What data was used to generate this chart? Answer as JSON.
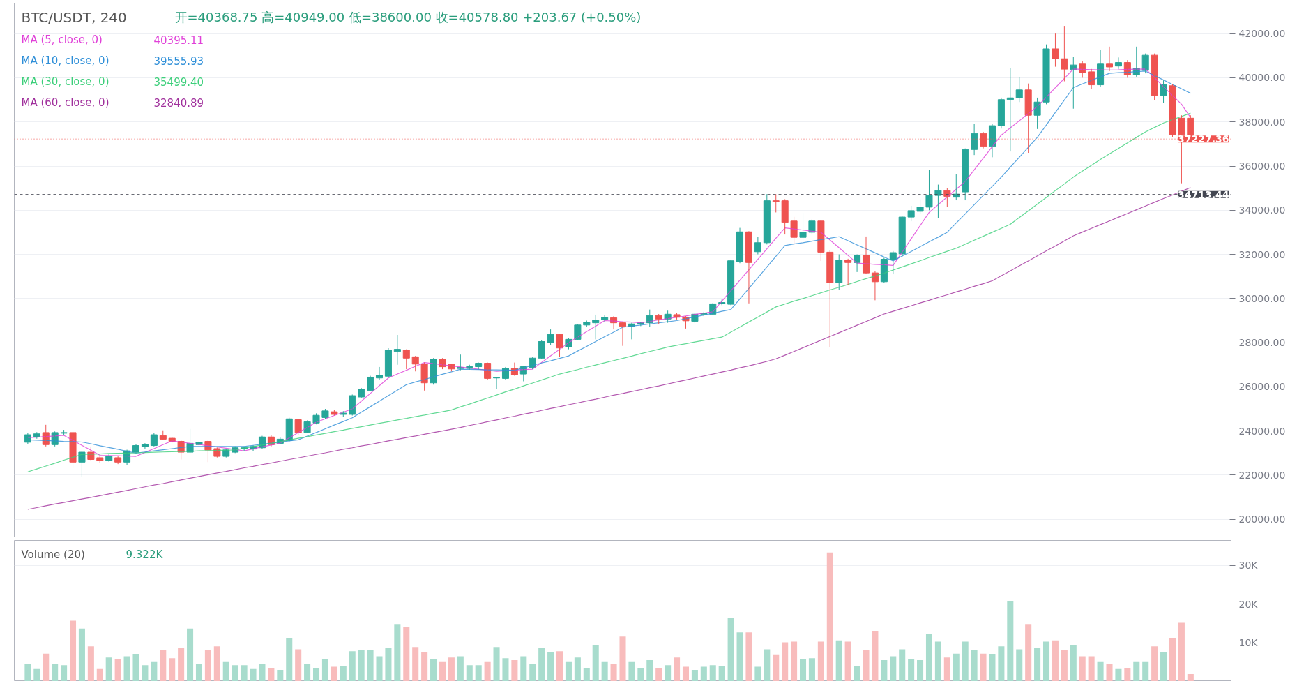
{
  "chart_data": [
    {
      "type": "candlestick",
      "title": "BTC/USDT, 240",
      "subtitle": "开=40368.75  高=40949.00  低=38600.00  收=40578.80  +203.67 (+0.50%)",
      "legend": "top left",
      "tick_labels": "y",
      "grid": "y",
      "ylim": [
        19170,
        43380
      ],
      "yticks": [
        {
          "value": 20000,
          "label": "20000.00"
        },
        {
          "value": 22000,
          "label": "22000.00"
        },
        {
          "value": 24000,
          "label": "24000.00"
        },
        {
          "value": 26000,
          "label": "26000.00"
        },
        {
          "value": 28000,
          "label": "28000.00"
        },
        {
          "value": 30000,
          "label": "30000.00"
        },
        {
          "value": 32000,
          "label": "32000.00"
        },
        {
          "value": 34000,
          "label": "34000.00"
        },
        {
          "value": 36000,
          "label": "36000.00"
        },
        {
          "value": 38000,
          "label": "38000.00"
        },
        {
          "value": 40000,
          "label": "40000.00"
        },
        {
          "value": 42000,
          "label": "42000.00"
        }
      ],
      "categories": [
        null,
        null,
        null,
        null,
        null,
        null,
        null,
        null,
        null,
        null,
        null,
        null,
        null,
        null,
        null,
        null,
        null,
        null,
        null,
        null,
        null,
        null,
        null,
        null,
        null,
        null,
        null,
        null,
        null,
        null,
        null,
        null,
        null,
        null,
        null,
        null,
        null,
        null,
        null,
        null,
        null,
        null,
        null,
        null,
        null,
        null,
        null,
        null,
        null,
        null,
        null,
        null,
        null,
        null,
        null,
        null,
        null,
        null,
        null,
        null,
        null,
        null,
        null,
        null,
        null,
        null,
        null,
        null,
        null,
        null,
        null,
        null,
        null,
        null,
        null,
        null,
        null,
        null,
        null,
        null,
        null,
        null,
        null,
        null,
        null,
        null,
        null,
        null,
        null,
        null,
        null,
        null,
        null,
        null,
        null,
        null,
        null,
        null,
        null,
        null,
        null,
        null,
        null,
        null,
        null,
        null,
        null,
        null,
        null,
        null,
        null,
        null,
        null,
        null,
        null,
        null,
        null,
        null,
        null,
        null,
        null,
        null,
        null,
        null,
        null,
        null,
        null,
        null,
        null,
        null
      ],
      "ohlc": [
        [
          23490,
          23900,
          23400,
          23830
        ],
        [
          23730,
          23950,
          23650,
          23870
        ],
        [
          23930,
          24280,
          23300,
          23380
        ],
        [
          23380,
          23980,
          23300,
          23930
        ],
        [
          23900,
          24050,
          23800,
          23930
        ],
        [
          23930,
          24000,
          22310,
          22590
        ],
        [
          22590,
          23100,
          21920,
          23040
        ],
        [
          23040,
          23300,
          22650,
          22710
        ],
        [
          22790,
          22850,
          22550,
          22650
        ],
        [
          22650,
          22950,
          22600,
          22850
        ],
        [
          22790,
          22850,
          22500,
          22590
        ],
        [
          22590,
          23150,
          22450,
          23100
        ],
        [
          23040,
          23400,
          23000,
          23340
        ],
        [
          23280,
          23450,
          23200,
          23400
        ],
        [
          23340,
          23900,
          23300,
          23830
        ],
        [
          23790,
          24030,
          23580,
          23630
        ],
        [
          23670,
          23720,
          23480,
          23530
        ],
        [
          23530,
          23600,
          22710,
          23040
        ],
        [
          23040,
          24090,
          23000,
          23440
        ],
        [
          23380,
          23550,
          23300,
          23490
        ],
        [
          23530,
          23600,
          22590,
          23140
        ],
        [
          23200,
          23250,
          22800,
          22850
        ],
        [
          22850,
          23200,
          22800,
          23140
        ],
        [
          23040,
          23300,
          23000,
          23240
        ],
        [
          23200,
          23300,
          23100,
          23240
        ],
        [
          23180,
          23350,
          23100,
          23300
        ],
        [
          23240,
          23780,
          23200,
          23730
        ],
        [
          23730,
          23800,
          23300,
          23380
        ],
        [
          23440,
          23700,
          23400,
          23630
        ],
        [
          23570,
          24600,
          23500,
          24550
        ],
        [
          24510,
          24550,
          23800,
          23930
        ],
        [
          23930,
          24480,
          23900,
          24420
        ],
        [
          24360,
          24800,
          24300,
          24710
        ],
        [
          24610,
          25000,
          24550,
          24910
        ],
        [
          24870,
          24950,
          24700,
          24750
        ],
        [
          24750,
          24900,
          24650,
          24810
        ],
        [
          24750,
          25650,
          24700,
          25600
        ],
        [
          25540,
          25950,
          25500,
          25890
        ],
        [
          25830,
          26500,
          25800,
          26440
        ],
        [
          26400,
          26900,
          26300,
          26520
        ],
        [
          26480,
          27750,
          26450,
          27660
        ],
        [
          27600,
          28350,
          27000,
          27700
        ],
        [
          27660,
          27700,
          26800,
          27300
        ],
        [
          27360,
          27400,
          26700,
          27030
        ],
        [
          27030,
          27100,
          25830,
          26180
        ],
        [
          26180,
          27300,
          26100,
          27260
        ],
        [
          27230,
          27300,
          26800,
          26910
        ],
        [
          27010,
          27050,
          26700,
          26810
        ],
        [
          26830,
          27460,
          26750,
          26880
        ],
        [
          26833,
          27000,
          26780,
          26912
        ],
        [
          26912,
          27100,
          26800,
          27070
        ],
        [
          27070,
          27100,
          26300,
          26380
        ],
        [
          26400,
          26450,
          25890,
          26420
        ],
        [
          26380,
          26900,
          26300,
          26833
        ],
        [
          26833,
          27100,
          26500,
          26550
        ],
        [
          26580,
          26950,
          26250,
          26912
        ],
        [
          26870,
          27350,
          26800,
          27300
        ],
        [
          27300,
          28100,
          27250,
          28050
        ],
        [
          28000,
          28600,
          27900,
          28370
        ],
        [
          28370,
          28400,
          27360,
          27760
        ],
        [
          27800,
          28200,
          27700,
          28150
        ],
        [
          28150,
          28850,
          28100,
          28800
        ],
        [
          28800,
          29000,
          28700,
          28935
        ],
        [
          28900,
          29270,
          28150,
          29030
        ],
        [
          29030,
          29250,
          28950,
          29150
        ],
        [
          29130,
          29200,
          28600,
          28900
        ],
        [
          28900,
          28950,
          27855,
          28740
        ],
        [
          28740,
          28900,
          28150,
          28850
        ],
        [
          28850,
          28950,
          28750,
          28900
        ],
        [
          28900,
          29500,
          28700,
          29230
        ],
        [
          29230,
          29300,
          28850,
          29070
        ],
        [
          29070,
          29450,
          28900,
          29290
        ],
        [
          29270,
          29350,
          29050,
          29150
        ],
        [
          29150,
          29200,
          28640,
          28990
        ],
        [
          28970,
          29350,
          28900,
          29290
        ],
        [
          29290,
          29400,
          29200,
          29330
        ],
        [
          29290,
          29800,
          29250,
          29760
        ],
        [
          29760,
          29950,
          29700,
          29820
        ],
        [
          29740,
          31750,
          29700,
          31710
        ],
        [
          31670,
          33200,
          31600,
          33020
        ],
        [
          33020,
          33050,
          29780,
          31630
        ],
        [
          32120,
          32800,
          32000,
          32530
        ],
        [
          32530,
          34730,
          32450,
          34430
        ],
        [
          34430,
          34730,
          33900,
          34400
        ],
        [
          34430,
          34500,
          32900,
          33450
        ],
        [
          33510,
          33700,
          32500,
          32770
        ],
        [
          32770,
          33880,
          32600,
          33000
        ],
        [
          33000,
          33600,
          32900,
          33510
        ],
        [
          33510,
          33550,
          31700,
          32100
        ],
        [
          32100,
          32200,
          27800,
          30720
        ],
        [
          30720,
          32000,
          30400,
          31740
        ],
        [
          31740,
          31800,
          30600,
          31630
        ],
        [
          31630,
          32000,
          31200,
          31970
        ],
        [
          31970,
          32810,
          31100,
          31160
        ],
        [
          31160,
          31250,
          29920,
          30760
        ],
        [
          30760,
          31850,
          30700,
          31780
        ],
        [
          31780,
          32150,
          31100,
          32080
        ],
        [
          32020,
          33750,
          31900,
          33690
        ],
        [
          33690,
          34200,
          33500,
          33980
        ],
        [
          33950,
          34500,
          33850,
          34140
        ],
        [
          34140,
          35810,
          34000,
          34670
        ],
        [
          34670,
          35160,
          33650,
          34890
        ],
        [
          34890,
          35000,
          34140,
          34630
        ],
        [
          34590,
          35620,
          34450,
          34730
        ],
        [
          34830,
          36800,
          34450,
          36750
        ],
        [
          36750,
          37900,
          36500,
          37480
        ],
        [
          37480,
          37550,
          36800,
          36890
        ],
        [
          36890,
          37900,
          36400,
          37830
        ],
        [
          37830,
          39100,
          37700,
          39010
        ],
        [
          39010,
          40430,
          36660,
          39090
        ],
        [
          39090,
          40040,
          38900,
          39450
        ],
        [
          39450,
          39740,
          36600,
          38300
        ],
        [
          38300,
          39100,
          37680,
          38900
        ],
        [
          38900,
          41510,
          38800,
          41310
        ],
        [
          41310,
          42000,
          40500,
          40860
        ],
        [
          40860,
          42350,
          39840,
          40390
        ],
        [
          40368.75,
          40949,
          38600,
          40578.8
        ],
        [
          40620,
          40750,
          40000,
          40230
        ],
        [
          40270,
          40400,
          39500,
          39680
        ],
        [
          39680,
          41250,
          39600,
          40620
        ],
        [
          40620,
          41410,
          40300,
          40490
        ],
        [
          40530,
          40920,
          40400,
          40690
        ],
        [
          40690,
          40800,
          40000,
          40130
        ],
        [
          40130,
          41410,
          40050,
          40430
        ],
        [
          40330,
          41100,
          40200,
          41020
        ],
        [
          41020,
          41100,
          39000,
          39210
        ],
        [
          39210,
          39880,
          38860,
          39680
        ],
        [
          39640,
          39700,
          37300,
          37440
        ],
        [
          38170,
          38300,
          35220,
          37440
        ],
        [
          38170,
          38300,
          37100,
          37227.36
        ]
      ],
      "colors": [
        "#26a69a",
        "#26a69a",
        "#ef5350",
        "#26a69a",
        "#26a69a",
        "#ef5350",
        "#26a69a",
        "#ef5350",
        "#ef5350",
        "#26a69a",
        "#ef5350",
        "#26a69a",
        "#26a69a",
        "#26a69a",
        "#26a69a",
        "#ef5350",
        "#ef5350",
        "#ef5350",
        "#26a69a",
        "#26a69a",
        "#ef5350",
        "#ef5350",
        "#26a69a",
        "#26a69a",
        "#26a69a",
        "#26a69a",
        "#26a69a",
        "#ef5350",
        "#26a69a",
        "#26a69a",
        "#ef5350",
        "#26a69a",
        "#26a69a",
        "#26a69a",
        "#ef5350",
        "#26a69a",
        "#26a69a",
        "#26a69a",
        "#26a69a",
        "#26a69a",
        "#26a69a",
        "#26a69a",
        "#ef5350",
        "#ef5350",
        "#ef5350",
        "#26a69a",
        "#ef5350",
        "#ef5350",
        "#26a69a",
        "#26a69a",
        "#26a69a",
        "#ef5350",
        "#26a69a",
        "#26a69a",
        "#ef5350",
        "#26a69a",
        "#26a69a",
        "#26a69a",
        "#26a69a",
        "#ef5350",
        "#26a69a",
        "#26a69a",
        "#26a69a",
        "#26a69a",
        "#26a69a",
        "#ef5350",
        "#ef5350",
        "#26a69a",
        "#26a69a",
        "#26a69a",
        "#ef5350",
        "#26a69a",
        "#ef5350",
        "#ef5350",
        "#26a69a",
        "#26a69a",
        "#26a69a",
        "#26a69a",
        "#26a69a",
        "#26a69a",
        "#ef5350",
        "#26a69a",
        "#26a69a",
        "#ef5350",
        "#ef5350",
        "#ef5350",
        "#26a69a",
        "#26a69a",
        "#ef5350",
        "#ef5350",
        "#26a69a",
        "#ef5350",
        "#26a69a",
        "#ef5350",
        "#ef5350",
        "#26a69a",
        "#26a69a",
        "#26a69a",
        "#26a69a",
        "#26a69a",
        "#26a69a",
        "#26a69a",
        "#ef5350",
        "#26a69a",
        "#26a69a",
        "#26a69a",
        "#ef5350",
        "#26a69a",
        "#26a69a",
        "#26a69a",
        "#26a69a",
        "#ef5350",
        "#26a69a",
        "#26a69a",
        "#ef5350",
        "#ef5350",
        "#26a69a",
        "#ef5350",
        "#ef5350",
        "#26a69a",
        "#ef5350",
        "#26a69a",
        "#ef5350",
        "#26a69a",
        "#26a69a",
        "#ef5350",
        "#26a69a",
        "#ef5350",
        "#ef5350",
        "#ef5350"
      ],
      "series": [
        {
          "type": "line",
          "name": "MA (5, close, 0)",
          "color": "#e040d8",
          "values": [
            23700,
            23720,
            23750,
            23770,
            23800,
            23580,
            23350,
            23130,
            22900,
            22890,
            22880,
            22860,
            22850,
            23030,
            23200,
            23380,
            23550,
            23500,
            23440,
            23390,
            23330,
            23270,
            23220,
            23160,
            23100,
            23190,
            23280,
            23360,
            23450,
            23690,
            23930,
            24160,
            24400,
            24550,
            24700,
            24850,
            25000,
            25350,
            25700,
            26050,
            26400,
            26580,
            26750,
            26930,
            27100,
            27050,
            27000,
            26950,
            26900,
            26850,
            26800,
            26750,
            26700,
            26730,
            26750,
            26780,
            26800,
            27100,
            27400,
            27700,
            28000,
            28250,
            28500,
            28750,
            29000,
            28980,
            28950,
            28930,
            28900,
            28960,
            29030,
            29090,
            29150,
            29210,
            29280,
            29340,
            29400,
            29880,
            30350,
            30830,
            31300,
            31780,
            32250,
            32730,
            33200,
            33150,
            33100,
            33050,
            33000,
            32650,
            32300,
            31950,
            31600,
            31580,
            31550,
            31530,
            31500,
            32100,
            32700,
            33300,
            33900,
            34250,
            34600,
            34950,
            35300,
            35830,
            36350,
            36880,
            37400,
            37730,
            38050,
            38380,
            38700,
            39120,
            39550,
            39970,
            40395,
            40380,
            40370,
            40360,
            40350,
            40360,
            40380,
            40390,
            40400,
            40000,
            39600,
            39200,
            38800,
            38200
          ]
        },
        {
          "type": "line",
          "name": "MA (10, close, 0)",
          "color": "#2f8fd8",
          "values": [
            23600,
            23580,
            23570,
            23550,
            23530,
            23520,
            23500,
            23420,
            23330,
            23250,
            23170,
            23080,
            23000,
            23050,
            23100,
            23150,
            23200,
            23250,
            23300,
            23300,
            23300,
            23300,
            23300,
            23300,
            23300,
            23350,
            23400,
            23450,
            23500,
            23550,
            23600,
            23770,
            23930,
            24100,
            24270,
            24430,
            24600,
            24850,
            25100,
            25350,
            25600,
            25850,
            26100,
            26220,
            26330,
            26450,
            26570,
            26680,
            26800,
            26790,
            26780,
            26770,
            26770,
            26760,
            26750,
            26860,
            26970,
            27080,
            27180,
            27290,
            27400,
            27620,
            27830,
            28050,
            28270,
            28480,
            28700,
            28750,
            28800,
            28850,
            28900,
            28950,
            29000,
            29080,
            29170,
            29250,
            29330,
            29420,
            29500,
            29980,
            30460,
            30940,
            31430,
            31910,
            32400,
            32470,
            32530,
            32600,
            32670,
            32730,
            32800,
            32620,
            32430,
            32250,
            32070,
            31880,
            31700,
            31920,
            32130,
            32350,
            32570,
            32780,
            33000,
            33420,
            33830,
            34250,
            34670,
            35080,
            35500,
            35950,
            36400,
            36850,
            37300,
            37860,
            38430,
            38990,
            39556,
            39720,
            39880,
            40040,
            40200,
            40230,
            40250,
            40280,
            40300,
            40100,
            39900,
            39700,
            39500,
            39300
          ]
        },
        {
          "type": "line",
          "name": "MA (30, close, 0)",
          "color": "#3ccf7a",
          "values": [
            22150,
            22280,
            22410,
            22540,
            22680,
            22810,
            22940,
            22950,
            22960,
            22980,
            22990,
            23000,
            23010,
            23020,
            23040,
            23050,
            23060,
            23070,
            23080,
            23100,
            23110,
            23120,
            23130,
            23140,
            23220,
            23290,
            23370,
            23440,
            23520,
            23590,
            23670,
            23740,
            23820,
            23890,
            23970,
            24040,
            24120,
            24190,
            24270,
            24350,
            24420,
            24500,
            24570,
            24650,
            24720,
            24800,
            24870,
            24950,
            25090,
            25220,
            25360,
            25490,
            25630,
            25770,
            25900,
            26040,
            26170,
            26310,
            26440,
            26580,
            26680,
            26780,
            26890,
            26990,
            27090,
            27190,
            27290,
            27390,
            27500,
            27600,
            27700,
            27800,
            27880,
            27950,
            28030,
            28100,
            28180,
            28250,
            28480,
            28710,
            28940,
            29160,
            29390,
            29620,
            29750,
            29880,
            30000,
            30130,
            30260,
            30390,
            30510,
            30640,
            30770,
            30900,
            31020,
            31150,
            31290,
            31430,
            31570,
            31710,
            31860,
            32000,
            32140,
            32280,
            32460,
            32640,
            32820,
            33000,
            33180,
            33360,
            33670,
            33970,
            34280,
            34580,
            34890,
            35190,
            35500,
            35770,
            36030,
            36300,
            36550,
            36800,
            37050,
            37300,
            37550,
            37750,
            37950,
            38100,
            38250,
            38400
          ]
        },
        {
          "type": "line",
          "name": "MA (60, close, 0)",
          "color": "#a0309c",
          "values": [
            20450,
            20530,
            20610,
            20690,
            20760,
            20840,
            20920,
            20990,
            21070,
            21150,
            21230,
            21310,
            21390,
            21470,
            21550,
            21620,
            21700,
            21780,
            21860,
            21940,
            22020,
            22100,
            22170,
            22250,
            22330,
            22400,
            22480,
            22550,
            22630,
            22710,
            22780,
            22860,
            22940,
            23010,
            23090,
            23170,
            23240,
            23320,
            23390,
            23470,
            23550,
            23620,
            23700,
            23770,
            23850,
            23930,
            24000,
            24080,
            24160,
            24250,
            24330,
            24420,
            24500,
            24590,
            24670,
            24760,
            24840,
            24930,
            25020,
            25100,
            25190,
            25270,
            25360,
            25440,
            25530,
            25620,
            25700,
            25790,
            25870,
            25960,
            26040,
            26130,
            26220,
            26310,
            26400,
            26490,
            26580,
            26670,
            26760,
            26860,
            26950,
            27050,
            27150,
            27270,
            27430,
            27600,
            27770,
            27940,
            28110,
            28280,
            28450,
            28620,
            28790,
            28960,
            29130,
            29300,
            29420,
            29550,
            29670,
            29800,
            29920,
            30050,
            30170,
            30300,
            30420,
            30550,
            30670,
            30800,
            31030,
            31250,
            31480,
            31700,
            31930,
            32160,
            32380,
            32610,
            32840,
            33010,
            33180,
            33350,
            33510,
            33680,
            33850,
            34020,
            34190,
            34360,
            34530,
            34690,
            34860,
            35030
          ]
        }
      ],
      "annotations": [
        "40395.11",
        "39555.93",
        "35499.40",
        "32840.89"
      ],
      "ref_lines": [
        {
          "axis": "y",
          "value": 37227.36,
          "label": "37227.36",
          "color": "#ef5350",
          "line_style": "dotted"
        },
        {
          "axis": "y",
          "value": 34713.44,
          "label": "34713.44",
          "color": "#434651",
          "line_style": "dashed"
        }
      ]
    },
    {
      "type": "bar",
      "title": "Volume (20)",
      "annotations": [
        "9.322K"
      ],
      "tick_labels": "y",
      "grid": "y",
      "ylim": [
        0,
        36.5
      ],
      "yticks": [
        {
          "value": 10,
          "label": "10K"
        },
        {
          "value": 20,
          "label": "20K"
        },
        {
          "value": 30,
          "label": "30K"
        }
      ],
      "categories": [
        null,
        null,
        null,
        null,
        null,
        null,
        null,
        null,
        null,
        null,
        null,
        null,
        null,
        null,
        null,
        null,
        null,
        null,
        null,
        null,
        null,
        null,
        null,
        null,
        null,
        null,
        null,
        null,
        null,
        null,
        null,
        null,
        null,
        null,
        null,
        null,
        null,
        null,
        null,
        null,
        null,
        null,
        null,
        null,
        null,
        null,
        null,
        null,
        null,
        null,
        null,
        null,
        null,
        null,
        null,
        null,
        null,
        null,
        null,
        null,
        null,
        null,
        null,
        null,
        null,
        null,
        null,
        null,
        null,
        null,
        null,
        null,
        null,
        null,
        null,
        null,
        null,
        null,
        null,
        null,
        null,
        null,
        null,
        null,
        null,
        null,
        null,
        null,
        null,
        null,
        null,
        null,
        null,
        null,
        null,
        null,
        null,
        null,
        null,
        null,
        null,
        null,
        null,
        null,
        null,
        null,
        null,
        null,
        null,
        null,
        null,
        null,
        null,
        null,
        null,
        null,
        null,
        null,
        null,
        null,
        null,
        null,
        null,
        null,
        null,
        null,
        null,
        null,
        null,
        null
      ],
      "values": [
        4.5,
        3.2,
        7.2,
        4.5,
        4.2,
        15.7,
        13.7,
        9.1,
        3.2,
        6.2,
        5.8,
        6.5,
        7.0,
        4.2,
        5.0,
        8.1,
        6.0,
        8.6,
        13.7,
        4.5,
        8.1,
        9.1,
        5.0,
        4.2,
        4.2,
        3.2,
        4.5,
        3.5,
        3.0,
        11.3,
        8.3,
        4.5,
        3.5,
        5.7,
        3.8,
        4.0,
        7.8,
        8.1,
        8.1,
        6.5,
        8.6,
        14.7,
        14.0,
        8.9,
        7.6,
        5.8,
        5.0,
        6.2,
        6.5,
        4.2,
        4.2,
        5.0,
        8.9,
        6.0,
        5.5,
        6.5,
        4.5,
        8.6,
        7.6,
        7.8,
        5.0,
        6.2,
        3.5,
        9.3,
        5.0,
        4.5,
        11.6,
        5.0,
        3.5,
        5.5,
        3.5,
        4.2,
        6.2,
        3.8,
        3.0,
        3.8,
        4.2,
        4.0,
        16.4,
        12.7,
        12.7,
        3.8,
        8.3,
        6.8,
        10.1,
        10.3,
        5.8,
        6.0,
        10.3,
        33.4,
        10.6,
        10.3,
        4.0,
        8.1,
        13.0,
        5.5,
        6.5,
        8.3,
        5.8,
        5.5,
        12.3,
        10.3,
        6.2,
        7.2,
        10.3,
        8.1,
        7.2,
        7.0,
        9.1,
        20.8,
        8.3,
        14.7,
        8.6,
        10.3,
        10.6,
        8.1,
        9.322,
        6.5,
        6.5,
        5.0,
        4.5,
        3.2,
        3.5,
        5.0,
        5.0,
        9.1,
        7.6,
        11.3,
        15.2,
        1.9
      ],
      "colors": [
        "#a8dccd",
        "#a8dccd",
        "#f8bcbc",
        "#a8dccd",
        "#a8dccd",
        "#f8bcbc",
        "#a8dccd",
        "#f8bcbc",
        "#f8bcbc",
        "#a8dccd",
        "#f8bcbc",
        "#a8dccd",
        "#a8dccd",
        "#a8dccd",
        "#a8dccd",
        "#f8bcbc",
        "#f8bcbc",
        "#f8bcbc",
        "#a8dccd",
        "#a8dccd",
        "#f8bcbc",
        "#f8bcbc",
        "#a8dccd",
        "#a8dccd",
        "#a8dccd",
        "#a8dccd",
        "#a8dccd",
        "#f8bcbc",
        "#a8dccd",
        "#a8dccd",
        "#f8bcbc",
        "#a8dccd",
        "#a8dccd",
        "#a8dccd",
        "#f8bcbc",
        "#a8dccd",
        "#a8dccd",
        "#a8dccd",
        "#a8dccd",
        "#a8dccd",
        "#a8dccd",
        "#a8dccd",
        "#f8bcbc",
        "#f8bcbc",
        "#f8bcbc",
        "#a8dccd",
        "#f8bcbc",
        "#f8bcbc",
        "#a8dccd",
        "#a8dccd",
        "#a8dccd",
        "#f8bcbc",
        "#a8dccd",
        "#a8dccd",
        "#f8bcbc",
        "#a8dccd",
        "#a8dccd",
        "#a8dccd",
        "#a8dccd",
        "#f8bcbc",
        "#a8dccd",
        "#a8dccd",
        "#a8dccd",
        "#a8dccd",
        "#a8dccd",
        "#f8bcbc",
        "#f8bcbc",
        "#a8dccd",
        "#a8dccd",
        "#a8dccd",
        "#f8bcbc",
        "#a8dccd",
        "#f8bcbc",
        "#f8bcbc",
        "#a8dccd",
        "#a8dccd",
        "#a8dccd",
        "#a8dccd",
        "#a8dccd",
        "#a8dccd",
        "#f8bcbc",
        "#a8dccd",
        "#a8dccd",
        "#f8bcbc",
        "#f8bcbc",
        "#f8bcbc",
        "#a8dccd",
        "#a8dccd",
        "#f8bcbc",
        "#f8bcbc",
        "#a8dccd",
        "#f8bcbc",
        "#a8dccd",
        "#f8bcbc",
        "#f8bcbc",
        "#a8dccd",
        "#a8dccd",
        "#a8dccd",
        "#a8dccd",
        "#a8dccd",
        "#a8dccd",
        "#a8dccd",
        "#f8bcbc",
        "#a8dccd",
        "#a8dccd",
        "#a8dccd",
        "#f8bcbc",
        "#a8dccd",
        "#a8dccd",
        "#a8dccd",
        "#a8dccd",
        "#f8bcbc",
        "#a8dccd",
        "#a8dccd",
        "#f8bcbc",
        "#f8bcbc",
        "#a8dccd",
        "#f8bcbc",
        "#f8bcbc",
        "#a8dccd",
        "#f8bcbc",
        "#a8dccd",
        "#f8bcbc",
        "#a8dccd",
        "#a8dccd",
        "#f8bcbc",
        "#a8dccd",
        "#f8bcbc",
        "#f8bcbc",
        "#f8bcbc"
      ]
    }
  ]
}
